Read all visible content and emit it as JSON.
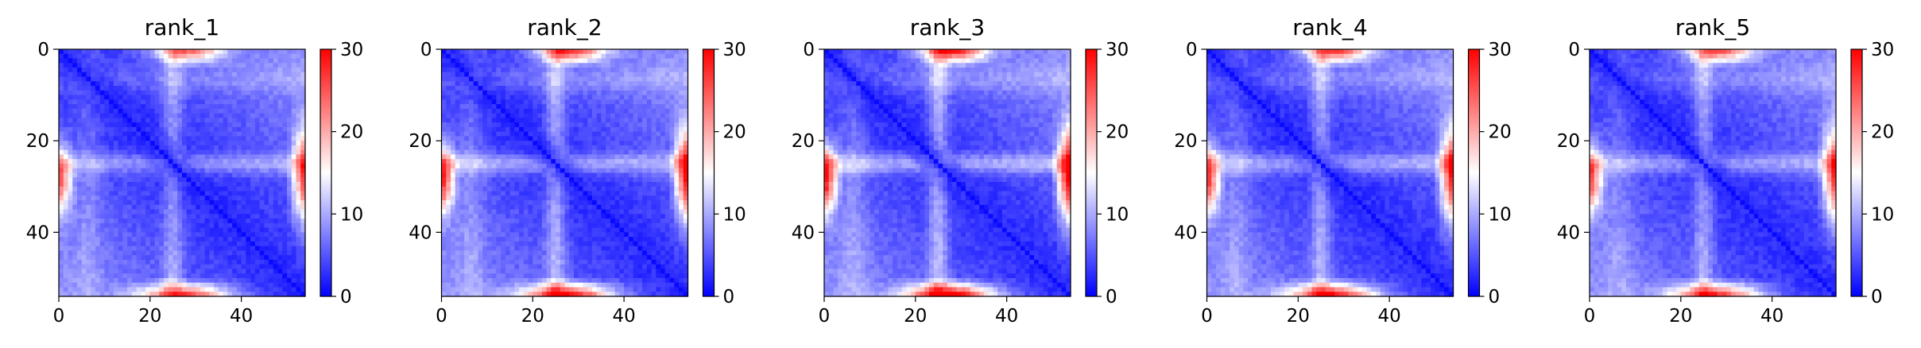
{
  "figure": {
    "colormap": [
      "#0000ff",
      "#ffffff",
      "#ff0000"
    ]
  },
  "chart_data": [
    {
      "type": "heatmap",
      "title": "rank_1",
      "matrix_size": 54,
      "x_ticks": [
        0,
        20,
        40
      ],
      "y_ticks": [
        0,
        20,
        40
      ],
      "xlim": [
        0,
        54
      ],
      "ylim": [
        54,
        0
      ],
      "colorbar": {
        "range": [
          0,
          30
        ],
        "ticks": [
          0,
          10,
          20,
          30
        ]
      },
      "intensity": 0.9
    },
    {
      "type": "heatmap",
      "title": "rank_2",
      "matrix_size": 54,
      "x_ticks": [
        0,
        20,
        40
      ],
      "y_ticks": [
        0,
        20,
        40
      ],
      "xlim": [
        0,
        54
      ],
      "ylim": [
        54,
        0
      ],
      "colorbar": {
        "range": [
          0,
          30
        ],
        "ticks": [
          0,
          10,
          20,
          30
        ]
      },
      "intensity": 1.05
    },
    {
      "type": "heatmap",
      "title": "rank_3",
      "matrix_size": 54,
      "x_ticks": [
        0,
        20,
        40
      ],
      "y_ticks": [
        0,
        20,
        40
      ],
      "xlim": [
        0,
        54
      ],
      "ylim": [
        54,
        0
      ],
      "colorbar": {
        "range": [
          0,
          30
        ],
        "ticks": [
          0,
          10,
          20,
          30
        ]
      },
      "intensity": 1.12
    },
    {
      "type": "heatmap",
      "title": "rank_4",
      "matrix_size": 54,
      "x_ticks": [
        0,
        20,
        40
      ],
      "y_ticks": [
        0,
        20,
        40
      ],
      "xlim": [
        0,
        54
      ],
      "ylim": [
        54,
        0
      ],
      "colorbar": {
        "range": [
          0,
          30
        ],
        "ticks": [
          0,
          10,
          20,
          30
        ]
      },
      "intensity": 1.0
    },
    {
      "type": "heatmap",
      "title": "rank_5",
      "matrix_size": 54,
      "x_ticks": [
        0,
        20,
        40
      ],
      "y_ticks": [
        0,
        20,
        40
      ],
      "xlim": [
        0,
        54
      ],
      "ylim": [
        54,
        0
      ],
      "colorbar": {
        "range": [
          0,
          30
        ],
        "ticks": [
          0,
          10,
          20,
          30
        ]
      },
      "intensity": 0.95
    }
  ]
}
